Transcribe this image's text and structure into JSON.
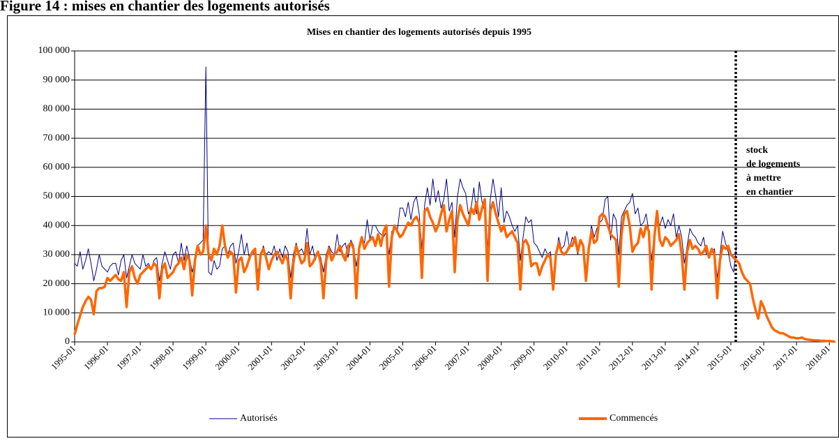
{
  "header": "Figure 14 : mises en chantier des logements autorisés",
  "chart_data": {
    "type": "line",
    "title": "Mises en chantier des logements autorisés depuis 1995",
    "categories": [
      "1995-01",
      null,
      null,
      null,
      null,
      null,
      null,
      null,
      null,
      null,
      null,
      null,
      "1996-01",
      null,
      null,
      null,
      null,
      null,
      null,
      null,
      null,
      null,
      null,
      null,
      "1997-01",
      null,
      null,
      null,
      null,
      null,
      null,
      null,
      null,
      null,
      null,
      null,
      "1998-01",
      null,
      null,
      null,
      null,
      null,
      null,
      null,
      null,
      null,
      null,
      null,
      "1999-01",
      null,
      null,
      null,
      null,
      null,
      null,
      null,
      null,
      null,
      null,
      null,
      "2000-01",
      null,
      null,
      null,
      null,
      null,
      null,
      null,
      null,
      null,
      null,
      null,
      "2001-01",
      null,
      null,
      null,
      null,
      null,
      null,
      null,
      null,
      null,
      null,
      null,
      "2002-01",
      null,
      null,
      null,
      null,
      null,
      null,
      null,
      null,
      null,
      null,
      null,
      "2003-01",
      null,
      null,
      null,
      null,
      null,
      null,
      null,
      null,
      null,
      null,
      null,
      "2004-01",
      null,
      null,
      null,
      null,
      null,
      null,
      null,
      null,
      null,
      null,
      null,
      "2005-01",
      null,
      null,
      null,
      null,
      null,
      null,
      null,
      null,
      null,
      null,
      null,
      "2006-01",
      null,
      null,
      null,
      null,
      null,
      null,
      null,
      null,
      null,
      null,
      null,
      "2007-01",
      null,
      null,
      null,
      null,
      null,
      null,
      null,
      null,
      null,
      null,
      null,
      "2008-01",
      null,
      null,
      null,
      null,
      null,
      null,
      null,
      null,
      null,
      null,
      null,
      "2009-01",
      null,
      null,
      null,
      null,
      null,
      null,
      null,
      null,
      null,
      null,
      null,
      "2010-01",
      null,
      null,
      null,
      null,
      null,
      null,
      null,
      null,
      null,
      null,
      null,
      "2011-01",
      null,
      null,
      null,
      null,
      null,
      null,
      null,
      null,
      null,
      null,
      null,
      "2012-01",
      null,
      null,
      null,
      null,
      null,
      null,
      null,
      null,
      null,
      null,
      null,
      "2013-01",
      null,
      null,
      null,
      null,
      null,
      null,
      null,
      null,
      null,
      null,
      null,
      "2014-01",
      null,
      null,
      null,
      null,
      null,
      null,
      null,
      null,
      null,
      null,
      null,
      "2015-01",
      null,
      null,
      null,
      null,
      null,
      null,
      null,
      null,
      null,
      null,
      null,
      "2016-01",
      null,
      null,
      null,
      null,
      null,
      null,
      null,
      null,
      null,
      null,
      null,
      "2017-01",
      null,
      null,
      null,
      null,
      null,
      null,
      null,
      null,
      null,
      null,
      null,
      "2018-01",
      null,
      null
    ],
    "series": [
      {
        "name": "Autorisés",
        "color": "#000080",
        "values": [
          27000,
          26000,
          31000,
          25000,
          28000,
          32000,
          27000,
          21000,
          25000,
          30000,
          26000,
          25000,
          24000,
          26000,
          27000,
          27000,
          23000,
          28000,
          30000,
          22000,
          26000,
          30000,
          27000,
          26000,
          25000,
          30000,
          26000,
          27000,
          25000,
          28000,
          29000,
          21000,
          27000,
          31000,
          28000,
          25000,
          30000,
          31000,
          27000,
          34000,
          28000,
          33000,
          29000,
          24000,
          28000,
          33000,
          34000,
          35000,
          94500,
          24000,
          23000,
          28000,
          25000,
          26000,
          32000,
          33000,
          30000,
          33000,
          34000,
          27000,
          31000,
          37000,
          30000,
          34000,
          28000,
          31000,
          30000,
          24000,
          29000,
          33000,
          30000,
          31000,
          30000,
          33000,
          28000,
          32000,
          29000,
          33000,
          31000,
          22000,
          30000,
          34000,
          31000,
          32000,
          30000,
          39000,
          30000,
          33000,
          28000,
          31000,
          29000,
          24000,
          30000,
          33000,
          31000,
          30000,
          37000,
          31000,
          33000,
          34000,
          29000,
          35000,
          33000,
          26000,
          32000,
          36000,
          34000,
          42000,
          35000,
          40000,
          40000,
          38000,
          37000,
          36000,
          38000,
          30000,
          38000,
          39000,
          38000,
          46000,
          46000,
          43000,
          48000,
          42000,
          48000,
          50000,
          44000,
          32000,
          47000,
          53000,
          47000,
          56000,
          48000,
          52000,
          46000,
          49000,
          56000,
          45000,
          48000,
          36000,
          50000,
          56000,
          53000,
          51000,
          44000,
          46000,
          53000,
          44000,
          55000,
          48000,
          45000,
          32000,
          49000,
          56000,
          50000,
          43000,
          53000,
          41000,
          45000,
          43000,
          40000,
          38000,
          40000,
          28000,
          36000,
          43000,
          41000,
          42000,
          34000,
          33000,
          31000,
          29000,
          32000,
          30000,
          31000,
          22000,
          29000,
          36000,
          32000,
          33000,
          38000,
          32000,
          36000,
          34000,
          30000,
          35000,
          33000,
          22000,
          33000,
          40000,
          36000,
          39000,
          41000,
          42000,
          49000,
          50000,
          35000,
          44000,
          42000,
          30000,
          43000,
          45000,
          47000,
          48000,
          51000,
          44000,
          46000,
          40000,
          41000,
          44000,
          38000,
          28000,
          38000,
          42000,
          40000,
          43000,
          39000,
          42000,
          40000,
          44000,
          36000,
          40000,
          36000,
          27000,
          33000,
          39000,
          37000,
          36000,
          34000,
          33000,
          36000,
          30000,
          30000,
          31000,
          32000,
          22000,
          30000,
          38000,
          34000,
          31000,
          26000,
          24000,
          33000,
          null,
          null,
          null,
          null,
          null,
          null,
          null,
          null,
          null,
          null,
          null,
          null,
          null,
          null,
          null,
          null,
          null,
          null,
          null,
          null,
          null,
          null,
          null,
          null,
          null,
          null,
          null,
          null,
          null,
          null,
          null,
          null,
          null,
          null,
          null,
          null
        ]
      },
      {
        "name": "Commencés",
        "color": "#ff6600",
        "values": [
          2500,
          6000,
          9000,
          12000,
          14000,
          15500,
          14500,
          9500,
          17500,
          18500,
          18500,
          19000,
          22000,
          21000,
          22000,
          23000,
          21500,
          21000,
          24000,
          12000,
          24000,
          26000,
          22000,
          20000,
          23000,
          24000,
          25000,
          26000,
          25000,
          27000,
          26000,
          15000,
          25000,
          27000,
          22000,
          23000,
          24000,
          26000,
          27000,
          29000,
          25000,
          30000,
          28000,
          16000,
          28000,
          33000,
          30000,
          31000,
          40000,
          30000,
          28000,
          32000,
          30000,
          33000,
          40000,
          33000,
          29000,
          31000,
          30000,
          17000,
          28000,
          29000,
          24000,
          26000,
          29000,
          31000,
          32000,
          18000,
          30000,
          32000,
          29000,
          25000,
          28000,
          30000,
          31000,
          29000,
          27000,
          30000,
          28000,
          15000,
          27000,
          33000,
          30000,
          27000,
          28000,
          34000,
          26000,
          27000,
          29000,
          31000,
          27000,
          15000,
          28000,
          32000,
          28000,
          30000,
          31000,
          33000,
          30000,
          28000,
          33000,
          34000,
          32000,
          15000,
          32000,
          36000,
          32000,
          34000,
          35000,
          36000,
          33000,
          37000,
          33000,
          38000,
          40000,
          19000,
          36000,
          40000,
          38000,
          36000,
          37000,
          39000,
          41000,
          40000,
          42000,
          43000,
          41000,
          22000,
          45000,
          46000,
          43000,
          41000,
          38000,
          40000,
          44000,
          47000,
          38000,
          42000,
          45000,
          24000,
          42000,
          47000,
          44000,
          42000,
          40000,
          46000,
          44000,
          48000,
          42000,
          46000,
          49000,
          21000,
          45000,
          48000,
          44000,
          41000,
          38000,
          40000,
          36000,
          37000,
          38000,
          36000,
          34000,
          18000,
          34000,
          35000,
          33000,
          26000,
          27000,
          27000,
          23000,
          26000,
          28000,
          30000,
          29000,
          18000,
          30000,
          34000,
          31000,
          30000,
          31000,
          33000,
          33000,
          36000,
          31000,
          35000,
          33000,
          21000,
          32000,
          38000,
          34000,
          35000,
          43000,
          44000,
          43000,
          40000,
          37000,
          36000,
          35000,
          19000,
          37000,
          44000,
          45000,
          40000,
          31000,
          33000,
          34000,
          39000,
          36000,
          40000,
          38000,
          18000,
          36000,
          45000,
          35000,
          33000,
          36000,
          35000,
          33000,
          34000,
          35000,
          37000,
          30000,
          18000,
          31000,
          35000,
          32000,
          33000,
          32000,
          30000,
          31000,
          33000,
          29000,
          32000,
          30000,
          15000,
          28000,
          33000,
          32000,
          33000,
          30000,
          29000,
          28000,
          27000,
          24000,
          22000,
          21000,
          20000,
          15000,
          11000,
          8000,
          14000,
          12000,
          9000,
          7000,
          5000,
          4000,
          3500,
          3000,
          3000,
          2500,
          2000,
          1500,
          1500,
          1200,
          1300,
          1500,
          1000,
          800,
          700,
          600,
          500,
          500,
          400,
          400,
          300,
          300,
          200,
          100
        ]
      }
    ],
    "ylim": [
      0,
      100000
    ],
    "yticks": [
      0,
      {
        "value": 10000,
        "label": "10 000"
      },
      {
        "value": 20000,
        "label": "20 000"
      },
      {
        "value": 30000,
        "label": "30 000"
      },
      {
        "value": 40000,
        "label": "40 000"
      },
      {
        "value": 50000,
        "label": "50 000"
      },
      {
        "value": 60000,
        "label": "60 000"
      },
      {
        "value": 70000,
        "label": "70 000"
      },
      {
        "value": 80000,
        "label": "80 000"
      },
      {
        "value": 90000,
        "label": "90 000"
      },
      {
        "value": 100000,
        "label": "100 000"
      }
    ],
    "grid": true,
    "annotation": [
      "stock",
      "de logements",
      "à mettre",
      "en chantier"
    ]
  }
}
